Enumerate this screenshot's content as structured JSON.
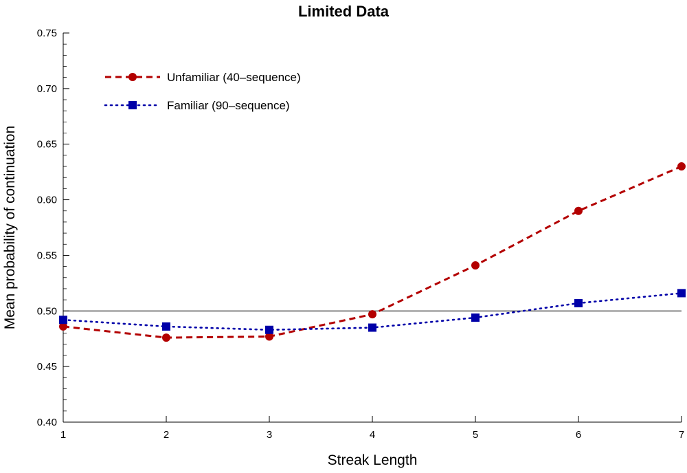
{
  "chart_data": {
    "type": "line",
    "title": "Limited Data",
    "xlabel": "Streak Length",
    "ylabel": "Mean probability of continuation",
    "xlim": [
      1,
      7
    ],
    "ylim": [
      0.4,
      0.75
    ],
    "x_ticks": [
      "1",
      "2",
      "3",
      "4",
      "5",
      "6",
      "7"
    ],
    "y_ticks": [
      "0.40",
      "0.45",
      "0.50",
      "0.55",
      "0.60",
      "0.65",
      "0.70",
      "0.75"
    ],
    "reference_line": 0.5,
    "grid": false,
    "legend_position": "top-left",
    "x": [
      1,
      2,
      3,
      4,
      5,
      6,
      7
    ],
    "series": [
      {
        "name": "Unfamiliar (40–sequence)",
        "values": [
          0.486,
          0.476,
          0.477,
          0.497,
          0.541,
          0.59,
          0.63
        ],
        "color": "#b30000",
        "line_style": "dashed",
        "marker": "circle"
      },
      {
        "name": "Familiar (90–sequence)",
        "values": [
          0.492,
          0.486,
          0.483,
          0.485,
          0.494,
          0.507,
          0.516
        ],
        "color": "#0000a8",
        "line_style": "dotted",
        "marker": "square"
      }
    ]
  }
}
